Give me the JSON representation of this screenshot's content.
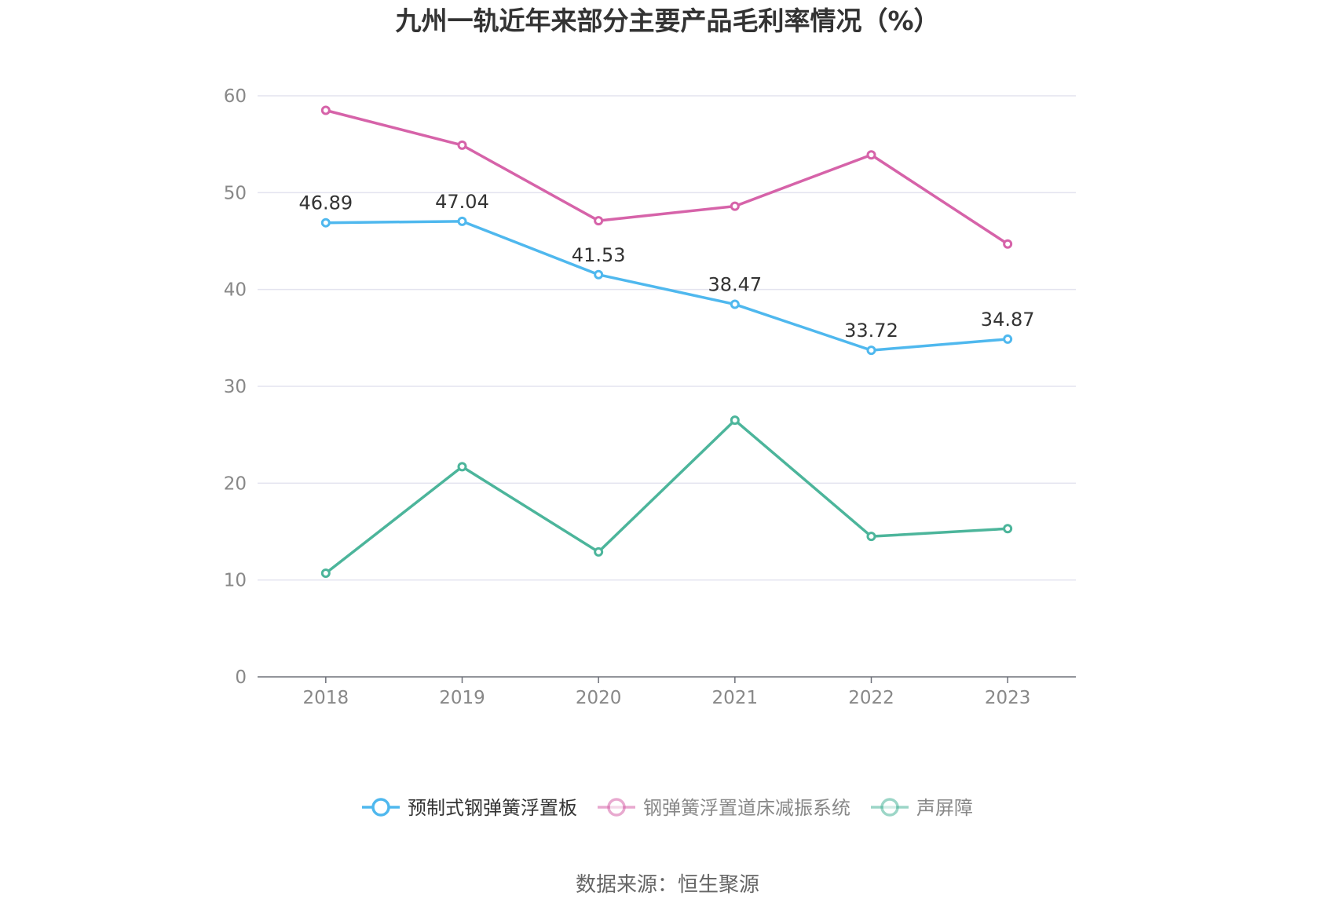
{
  "chart_data": {
    "type": "line",
    "title": "九州一轨近年来部分主要产品毛利率情况（%）",
    "categories": [
      "2018",
      "2019",
      "2020",
      "2021",
      "2022",
      "2023"
    ],
    "ylim": [
      0,
      60
    ],
    "yticks": [
      "0",
      "10",
      "20",
      "30",
      "40",
      "50",
      "60"
    ],
    "grid": true,
    "legend_position": "bottom",
    "series": [
      {
        "name": "预制式钢弹簧浮置板",
        "color": "#4fb8ee",
        "values": [
          46.89,
          47.04,
          41.53,
          38.47,
          33.72,
          34.87
        ],
        "labels": [
          "46.89",
          "47.04",
          "41.53",
          "38.47",
          "33.72",
          "34.87"
        ]
      },
      {
        "name": "钢弹簧浮置道床减振系统",
        "color": "#d663a9",
        "values": [
          58.5,
          54.9,
          47.1,
          48.6,
          53.9,
          44.7
        ]
      },
      {
        "name": "声屏障",
        "color": "#4cb59b",
        "values": [
          10.7,
          21.7,
          12.9,
          26.5,
          14.5,
          15.3
        ]
      }
    ],
    "source": "数据来源：恒生聚源"
  }
}
